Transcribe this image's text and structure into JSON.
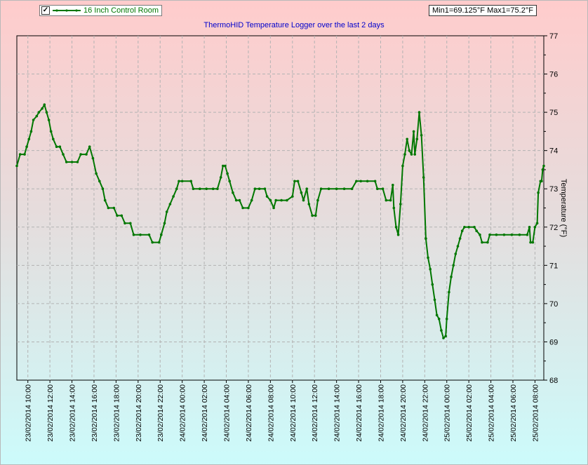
{
  "legend": {
    "checkbox": "✓",
    "label": "16 Inch Control Room"
  },
  "stats_text": "Min1=69.125°F  Max1=75.2°F",
  "colors": {
    "line": "#007700",
    "grid": "#b3b3b3",
    "title": "#0000cc"
  },
  "chart_data": {
    "type": "line",
    "title": "ThermoHID Temperature Logger over the last 2 days",
    "ylabel": "Temperature (°F)",
    "ylim": [
      68,
      77
    ],
    "yticks": [
      68,
      69,
      70,
      71,
      72,
      73,
      74,
      75,
      76,
      77
    ],
    "x_unit": "hours from 23/02/2014 09:00",
    "xlim": [
      0,
      47.8
    ],
    "xticks": [
      {
        "x": 1,
        "label": "23/02/2014 10:00"
      },
      {
        "x": 3,
        "label": "23/02/2014 12:00"
      },
      {
        "x": 5,
        "label": "23/02/2014 14:00"
      },
      {
        "x": 7,
        "label": "23/02/2014 16:00"
      },
      {
        "x": 9,
        "label": "23/02/2014 18:00"
      },
      {
        "x": 11,
        "label": "23/02/2014 20:00"
      },
      {
        "x": 13,
        "label": "23/02/2014 22:00"
      },
      {
        "x": 15,
        "label": "24/02/2014 00:00"
      },
      {
        "x": 17,
        "label": "24/02/2014 02:00"
      },
      {
        "x": 19,
        "label": "24/02/2014 04:00"
      },
      {
        "x": 21,
        "label": "24/02/2014 06:00"
      },
      {
        "x": 23,
        "label": "24/02/2014 08:00"
      },
      {
        "x": 25,
        "label": "24/02/2014 10:00"
      },
      {
        "x": 27,
        "label": "24/02/2014 12:00"
      },
      {
        "x": 29,
        "label": "24/02/2014 14:00"
      },
      {
        "x": 31,
        "label": "24/02/2014 16:00"
      },
      {
        "x": 33,
        "label": "24/02/2014 18:00"
      },
      {
        "x": 35,
        "label": "24/02/2014 20:00"
      },
      {
        "x": 37,
        "label": "24/02/2014 22:00"
      },
      {
        "x": 39,
        "label": "25/02/2014 00:00"
      },
      {
        "x": 41,
        "label": "25/02/2014 02:00"
      },
      {
        "x": 43,
        "label": "25/02/2014 04:00"
      },
      {
        "x": 45,
        "label": "25/02/2014 06:00"
      },
      {
        "x": 47,
        "label": "25/02/2014 08:00"
      }
    ],
    "grid": true,
    "legend_position": "top-left",
    "series": [
      {
        "name": "16 Inch Control Room",
        "points": [
          [
            0.0,
            73.6
          ],
          [
            0.3,
            73.9
          ],
          [
            0.7,
            73.9
          ],
          [
            0.9,
            74.1
          ],
          [
            1.1,
            74.3
          ],
          [
            1.3,
            74.5
          ],
          [
            1.5,
            74.8
          ],
          [
            1.8,
            74.9
          ],
          [
            2.0,
            75.0
          ],
          [
            2.3,
            75.1
          ],
          [
            2.5,
            75.2
          ],
          [
            2.7,
            75.0
          ],
          [
            2.9,
            74.8
          ],
          [
            3.1,
            74.5
          ],
          [
            3.3,
            74.3
          ],
          [
            3.6,
            74.1
          ],
          [
            3.9,
            74.1
          ],
          [
            4.2,
            73.9
          ],
          [
            4.5,
            73.7
          ],
          [
            5.0,
            73.7
          ],
          [
            5.5,
            73.7
          ],
          [
            5.8,
            73.9
          ],
          [
            6.3,
            73.9
          ],
          [
            6.6,
            74.1
          ],
          [
            6.9,
            73.8
          ],
          [
            7.2,
            73.4
          ],
          [
            7.5,
            73.2
          ],
          [
            7.8,
            73.0
          ],
          [
            8.0,
            72.7
          ],
          [
            8.3,
            72.5
          ],
          [
            8.8,
            72.5
          ],
          [
            9.1,
            72.3
          ],
          [
            9.5,
            72.3
          ],
          [
            9.8,
            72.1
          ],
          [
            10.3,
            72.1
          ],
          [
            10.6,
            71.8
          ],
          [
            11.2,
            71.8
          ],
          [
            12.0,
            71.8
          ],
          [
            12.3,
            71.6
          ],
          [
            12.9,
            71.6
          ],
          [
            13.1,
            71.8
          ],
          [
            13.4,
            72.1
          ],
          [
            13.6,
            72.4
          ],
          [
            13.9,
            72.6
          ],
          [
            14.2,
            72.8
          ],
          [
            14.5,
            73.0
          ],
          [
            14.7,
            73.2
          ],
          [
            15.0,
            73.2
          ],
          [
            15.8,
            73.2
          ],
          [
            16.0,
            73.0
          ],
          [
            16.6,
            73.0
          ],
          [
            17.2,
            73.0
          ],
          [
            17.8,
            73.0
          ],
          [
            18.2,
            73.0
          ],
          [
            18.5,
            73.3
          ],
          [
            18.7,
            73.6
          ],
          [
            18.9,
            73.6
          ],
          [
            19.1,
            73.4
          ],
          [
            19.3,
            73.2
          ],
          [
            19.6,
            72.9
          ],
          [
            19.9,
            72.7
          ],
          [
            20.2,
            72.7
          ],
          [
            20.5,
            72.5
          ],
          [
            21.0,
            72.5
          ],
          [
            21.3,
            72.7
          ],
          [
            21.6,
            73.0
          ],
          [
            22.0,
            73.0
          ],
          [
            22.5,
            73.0
          ],
          [
            22.7,
            72.8
          ],
          [
            23.0,
            72.7
          ],
          [
            23.3,
            72.5
          ],
          [
            23.5,
            72.7
          ],
          [
            24.0,
            72.7
          ],
          [
            24.5,
            72.7
          ],
          [
            25.0,
            72.8
          ],
          [
            25.2,
            73.2
          ],
          [
            25.5,
            73.2
          ],
          [
            25.8,
            72.9
          ],
          [
            26.0,
            72.7
          ],
          [
            26.3,
            73.0
          ],
          [
            26.5,
            72.6
          ],
          [
            26.8,
            72.3
          ],
          [
            27.1,
            72.3
          ],
          [
            27.3,
            72.7
          ],
          [
            27.6,
            73.0
          ],
          [
            28.3,
            73.0
          ],
          [
            29.0,
            73.0
          ],
          [
            29.7,
            73.0
          ],
          [
            30.4,
            73.0
          ],
          [
            30.8,
            73.2
          ],
          [
            31.2,
            73.2
          ],
          [
            31.8,
            73.2
          ],
          [
            32.5,
            73.2
          ],
          [
            32.7,
            73.0
          ],
          [
            33.2,
            73.0
          ],
          [
            33.5,
            72.7
          ],
          [
            33.9,
            72.7
          ],
          [
            34.1,
            73.1
          ],
          [
            34.2,
            72.5
          ],
          [
            34.4,
            72.0
          ],
          [
            34.6,
            71.8
          ],
          [
            34.8,
            72.6
          ],
          [
            35.0,
            73.6
          ],
          [
            35.2,
            73.9
          ],
          [
            35.4,
            74.3
          ],
          [
            35.6,
            74.0
          ],
          [
            35.8,
            73.9
          ],
          [
            36.0,
            74.5
          ],
          [
            36.1,
            73.9
          ],
          [
            36.3,
            74.3
          ],
          [
            36.5,
            75.0
          ],
          [
            36.7,
            74.4
          ],
          [
            36.9,
            73.3
          ],
          [
            37.1,
            71.7
          ],
          [
            37.3,
            71.2
          ],
          [
            37.5,
            70.9
          ],
          [
            37.7,
            70.5
          ],
          [
            37.9,
            70.1
          ],
          [
            38.1,
            69.7
          ],
          [
            38.3,
            69.6
          ],
          [
            38.5,
            69.3
          ],
          [
            38.7,
            69.1
          ],
          [
            38.9,
            69.15
          ],
          [
            39.0,
            69.6
          ],
          [
            39.2,
            70.3
          ],
          [
            39.4,
            70.7
          ],
          [
            39.6,
            71.0
          ],
          [
            39.8,
            71.3
          ],
          [
            40.0,
            71.5
          ],
          [
            40.2,
            71.7
          ],
          [
            40.4,
            71.9
          ],
          [
            40.6,
            72.0
          ],
          [
            41.0,
            72.0
          ],
          [
            41.5,
            72.0
          ],
          [
            41.7,
            71.9
          ],
          [
            42.0,
            71.8
          ],
          [
            42.2,
            71.6
          ],
          [
            42.7,
            71.6
          ],
          [
            42.9,
            71.8
          ],
          [
            43.5,
            71.8
          ],
          [
            44.2,
            71.8
          ],
          [
            44.9,
            71.8
          ],
          [
            45.6,
            71.8
          ],
          [
            46.3,
            71.8
          ],
          [
            46.5,
            72.0
          ],
          [
            46.6,
            71.6
          ],
          [
            46.8,
            71.6
          ],
          [
            47.0,
            72.0
          ],
          [
            47.2,
            72.1
          ],
          [
            47.3,
            72.9
          ],
          [
            47.5,
            73.2
          ],
          [
            47.6,
            73.2
          ],
          [
            47.7,
            73.5
          ],
          [
            47.8,
            73.6
          ]
        ]
      }
    ]
  }
}
